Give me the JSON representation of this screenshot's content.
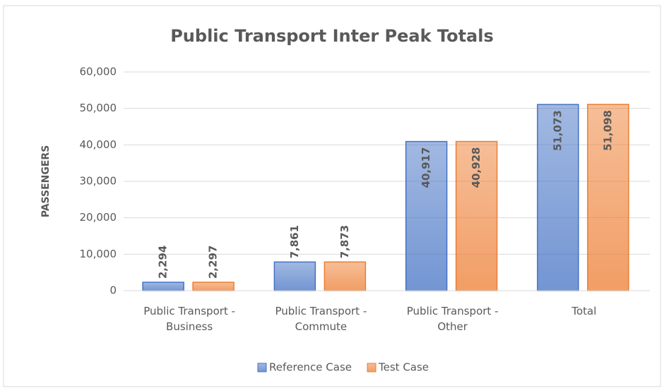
{
  "chart_data": {
    "type": "bar",
    "title": "Public Transport  Inter Peak Totals",
    "y_label": "PASSENGERS",
    "categories": [
      "Public Transport - Business",
      "Public Transport - Commute",
      "Public Transport - Other",
      "Total"
    ],
    "series": [
      {
        "name": "Reference Case",
        "color": "#4472c4",
        "values": [
          2294,
          7861,
          40917,
          51073
        ],
        "value_labels": [
          "2,294",
          "7,861",
          "40,917",
          "51,073"
        ]
      },
      {
        "name": "Test Case",
        "color": "#ed7d31",
        "values": [
          2297,
          7873,
          40928,
          51098
        ],
        "value_labels": [
          "2,297",
          "7,873",
          "40,928",
          "51,098"
        ]
      }
    ],
    "ylim": [
      0,
      60000
    ],
    "yticks": [
      0,
      {
        "value": 10000,
        "label": "10,000"
      },
      {
        "value": 20000,
        "label": "20,000"
      },
      {
        "value": 30000,
        "label": "30,000"
      },
      {
        "value": 40000,
        "label": "40,000"
      },
      {
        "value": 50000,
        "label": "50,000"
      },
      {
        "value": 60000,
        "label": "60,000"
      }
    ],
    "grid": true,
    "legend": "bottom"
  }
}
